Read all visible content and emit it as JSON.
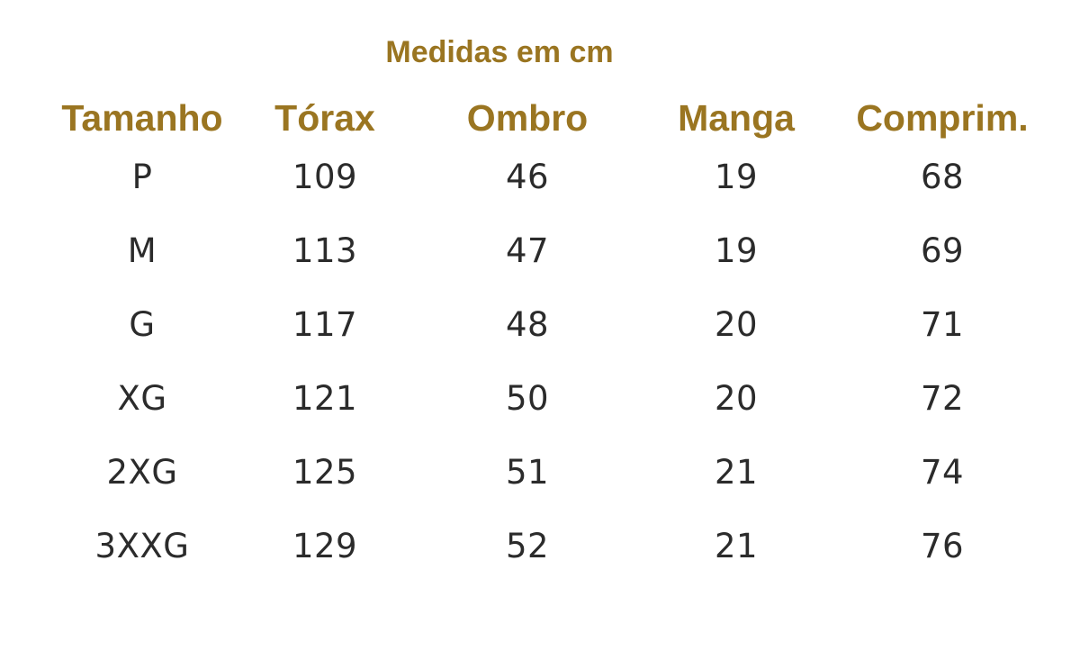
{
  "caption": "Medidas em cm",
  "colors": {
    "heading": "#9a7521",
    "text": "#2b2b2b",
    "background": "#ffffff"
  },
  "table": {
    "headers": [
      "Tamanho",
      "Tórax",
      "Ombro",
      "Manga",
      "Comprim."
    ],
    "rows": [
      [
        "P",
        "109",
        "46",
        "19",
        "68"
      ],
      [
        "M",
        "113",
        "47",
        "19",
        "69"
      ],
      [
        "G",
        "117",
        "48",
        "20",
        "71"
      ],
      [
        "XG",
        "121",
        "50",
        "20",
        "72"
      ],
      [
        "2XG",
        "125",
        "51",
        "21",
        "74"
      ],
      [
        "3XXG",
        "129",
        "52",
        "21",
        "76"
      ]
    ]
  }
}
